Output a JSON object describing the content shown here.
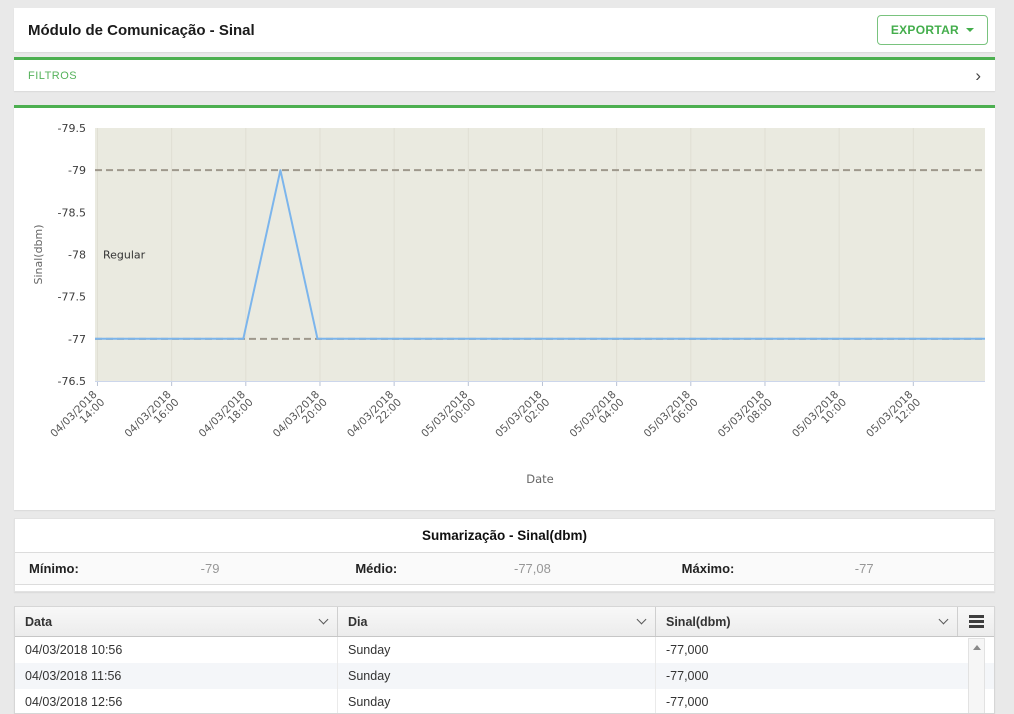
{
  "page": {
    "title": "Módulo de Comunicação - Sinal"
  },
  "header": {
    "export_label": "EXPORTAR"
  },
  "filters": {
    "label": "FILTROS"
  },
  "colors": {
    "accent_green": "#4caf50",
    "series_blue": "#7cb5ec",
    "plot_background": "#eaeae0",
    "plot_line_gray": "#9e988c"
  },
  "chart_data": {
    "type": "line",
    "title": "",
    "xlabel": "Date",
    "ylabel": "Sinal(dbm)",
    "ylim": [
      -79.5,
      -76.5
    ],
    "y_axis_inverted_top_to_bottom": true,
    "y_ticks": [
      "-79.5",
      "-79",
      "-78.5",
      "-78",
      "-77.5",
      "-77",
      "-76.5"
    ],
    "x_tick_labels": [
      "04/03/2018 14:00",
      "04/03/2018 16:00",
      "04/03/2018 18:00",
      "04/03/2018 20:00",
      "04/03/2018 22:00",
      "05/03/2018 00:00",
      "05/03/2018 02:00",
      "05/03/2018 04:00",
      "05/03/2018 06:00",
      "05/03/2018 08:00",
      "05/03/2018 10:00",
      "05/03/2018 12:00"
    ],
    "plot_lines": [
      {
        "value": -79,
        "style": "dashed"
      },
      {
        "value": -77,
        "style": "dashed"
      }
    ],
    "annotation": {
      "text": "Regular",
      "value": -78
    },
    "grid": "subtle-vertical",
    "legend": "none",
    "series": [
      {
        "name": "Sinal(dbm)",
        "color": "#7cb5ec",
        "points": [
          {
            "x": "04/03/2018 13:56",
            "y": -77
          },
          {
            "x": "04/03/2018 14:56",
            "y": -77
          },
          {
            "x": "04/03/2018 15:56",
            "y": -77
          },
          {
            "x": "04/03/2018 16:56",
            "y": -77
          },
          {
            "x": "04/03/2018 17:56",
            "y": -77
          },
          {
            "x": "04/03/2018 18:56",
            "y": -79
          },
          {
            "x": "04/03/2018 19:56",
            "y": -77
          },
          {
            "x": "04/03/2018 20:56",
            "y": -77
          },
          {
            "x": "04/03/2018 21:56",
            "y": -77
          },
          {
            "x": "04/03/2018 22:56",
            "y": -77
          },
          {
            "x": "04/03/2018 23:56",
            "y": -77
          },
          {
            "x": "05/03/2018 00:56",
            "y": -77
          },
          {
            "x": "05/03/2018 01:56",
            "y": -77
          },
          {
            "x": "05/03/2018 02:56",
            "y": -77
          },
          {
            "x": "05/03/2018 03:56",
            "y": -77
          },
          {
            "x": "05/03/2018 04:56",
            "y": -77
          },
          {
            "x": "05/03/2018 05:56",
            "y": -77
          },
          {
            "x": "05/03/2018 06:56",
            "y": -77
          },
          {
            "x": "05/03/2018 07:56",
            "y": -77
          },
          {
            "x": "05/03/2018 08:56",
            "y": -77
          },
          {
            "x": "05/03/2018 09:56",
            "y": -77
          },
          {
            "x": "05/03/2018 10:56",
            "y": -77
          },
          {
            "x": "05/03/2018 11:56",
            "y": -77
          },
          {
            "x": "05/03/2018 12:56",
            "y": -77
          },
          {
            "x": "05/03/2018 13:56",
            "y": -77
          }
        ]
      }
    ]
  },
  "summary": {
    "title": "Sumarização - Sinal(dbm)",
    "items": [
      {
        "label": "Mínimo:",
        "value": "-79"
      },
      {
        "label": "Médio:",
        "value": "-77,08"
      },
      {
        "label": "Máximo:",
        "value": "-77"
      }
    ]
  },
  "table": {
    "columns": [
      "Data",
      "Dia",
      "Sinal(dbm)"
    ],
    "rows": [
      [
        "04/03/2018 10:56",
        "Sunday",
        "-77,000"
      ],
      [
        "04/03/2018 11:56",
        "Sunday",
        "-77,000"
      ],
      [
        "04/03/2018 12:56",
        "Sunday",
        "-77,000"
      ]
    ]
  }
}
